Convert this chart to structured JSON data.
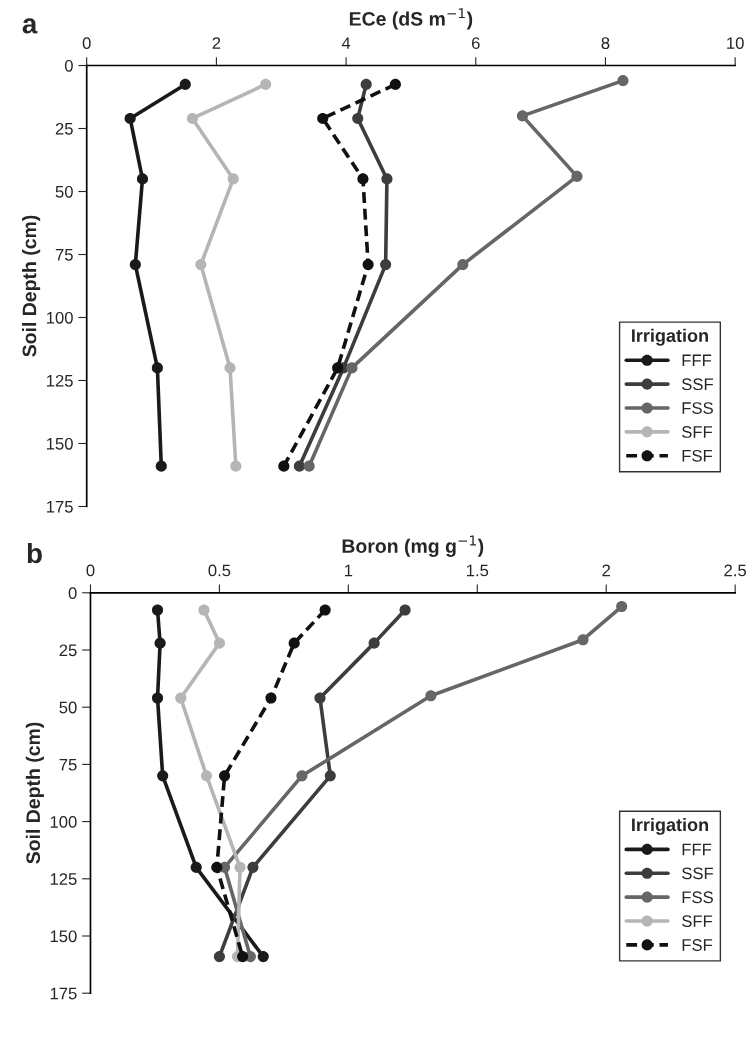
{
  "chart_data": [
    {
      "type": "line",
      "xlabel": "ECe (dS m$^{−1}$)",
      "ylabel": "Soil Depth (cm)",
      "annotations": [
        "a"
      ],
      "legend_title": "Irrigation",
      "legend": "bottom right",
      "marker": "circle",
      "grid": false,
      "xlim": [
        0,
        10
      ],
      "xticks": [
        0,
        2,
        4,
        6,
        8,
        10
      ],
      "ylim": [
        175,
        0
      ],
      "yticks": [
        0,
        25,
        50,
        75,
        100,
        125,
        150,
        175
      ],
      "series": [
        {
          "name": "FFF",
          "color": "#1a1a1a",
          "line_style": "solid",
          "x": [
            1.52,
            0.67,
            0.86,
            0.75,
            1.09,
            1.15
          ],
          "values": [
            7.5,
            21,
            45,
            79,
            120,
            159
          ]
        },
        {
          "name": "SSF",
          "color": "#3d3d3d",
          "line_style": "solid",
          "x": [
            4.31,
            4.18,
            4.63,
            4.61,
            3.96,
            3.28
          ],
          "values": [
            7.5,
            21,
            45,
            79,
            120,
            159
          ]
        },
        {
          "name": "FSS",
          "color": "#666666",
          "line_style": "solid",
          "x": [
            8.27,
            6.72,
            7.56,
            5.8,
            4.09,
            3.43
          ],
          "values": [
            6,
            20,
            44,
            79,
            120,
            159
          ]
        },
        {
          "name": "SFF",
          "color": "#b5b5b5",
          "line_style": "solid",
          "x": [
            2.76,
            1.63,
            2.26,
            1.76,
            2.21,
            2.3
          ],
          "values": [
            7.5,
            21,
            45,
            79,
            120,
            159
          ]
        },
        {
          "name": "FSF",
          "color": "#111111",
          "line_style": "dashed",
          "x": [
            4.76,
            3.64,
            4.26,
            4.34,
            3.87,
            3.04
          ],
          "values": [
            7.5,
            21,
            45,
            79,
            120,
            159
          ]
        }
      ]
    },
    {
      "type": "line",
      "xlabel": "Boron (mg g$^{−1}$)",
      "ylabel": "Soil Depth (cm)",
      "annotations": [
        "b"
      ],
      "legend_title": "Irrigation",
      "legend": "bottom right",
      "marker": "circle",
      "grid": false,
      "xlim": [
        0,
        2.5
      ],
      "xticks": [
        0,
        0.5,
        1,
        1.5,
        2,
        2.5
      ],
      "ylim": [
        175,
        0
      ],
      "yticks": [
        0,
        25,
        50,
        75,
        100,
        125,
        150,
        175
      ],
      "series": [
        {
          "name": "FFF",
          "color": "#1a1a1a",
          "line_style": "solid",
          "x": [
            0.26,
            0.27,
            0.26,
            0.28,
            0.41,
            0.67
          ],
          "values": [
            7.5,
            22,
            46,
            80,
            120,
            159
          ]
        },
        {
          "name": "SSF",
          "color": "#3d3d3d",
          "line_style": "solid",
          "x": [
            1.22,
            1.1,
            0.89,
            0.93,
            0.63,
            0.5
          ],
          "values": [
            7.5,
            22,
            46,
            80,
            120,
            159
          ]
        },
        {
          "name": "FSS",
          "color": "#666666",
          "line_style": "solid",
          "x": [
            2.06,
            1.91,
            1.32,
            0.82,
            0.52,
            0.62
          ],
          "values": [
            6,
            20.5,
            45,
            80,
            120,
            159
          ]
        },
        {
          "name": "SFF",
          "color": "#b5b5b5",
          "line_style": "solid",
          "x": [
            0.44,
            0.5,
            0.35,
            0.45,
            0.58,
            0.57
          ],
          "values": [
            7.5,
            22,
            46,
            80,
            120,
            159
          ]
        },
        {
          "name": "FSF",
          "color": "#111111",
          "line_style": "dashed",
          "x": [
            0.91,
            0.79,
            0.7,
            0.52,
            0.49,
            0.59
          ],
          "values": [
            7.5,
            22,
            46,
            80,
            120,
            159
          ]
        }
      ]
    }
  ]
}
